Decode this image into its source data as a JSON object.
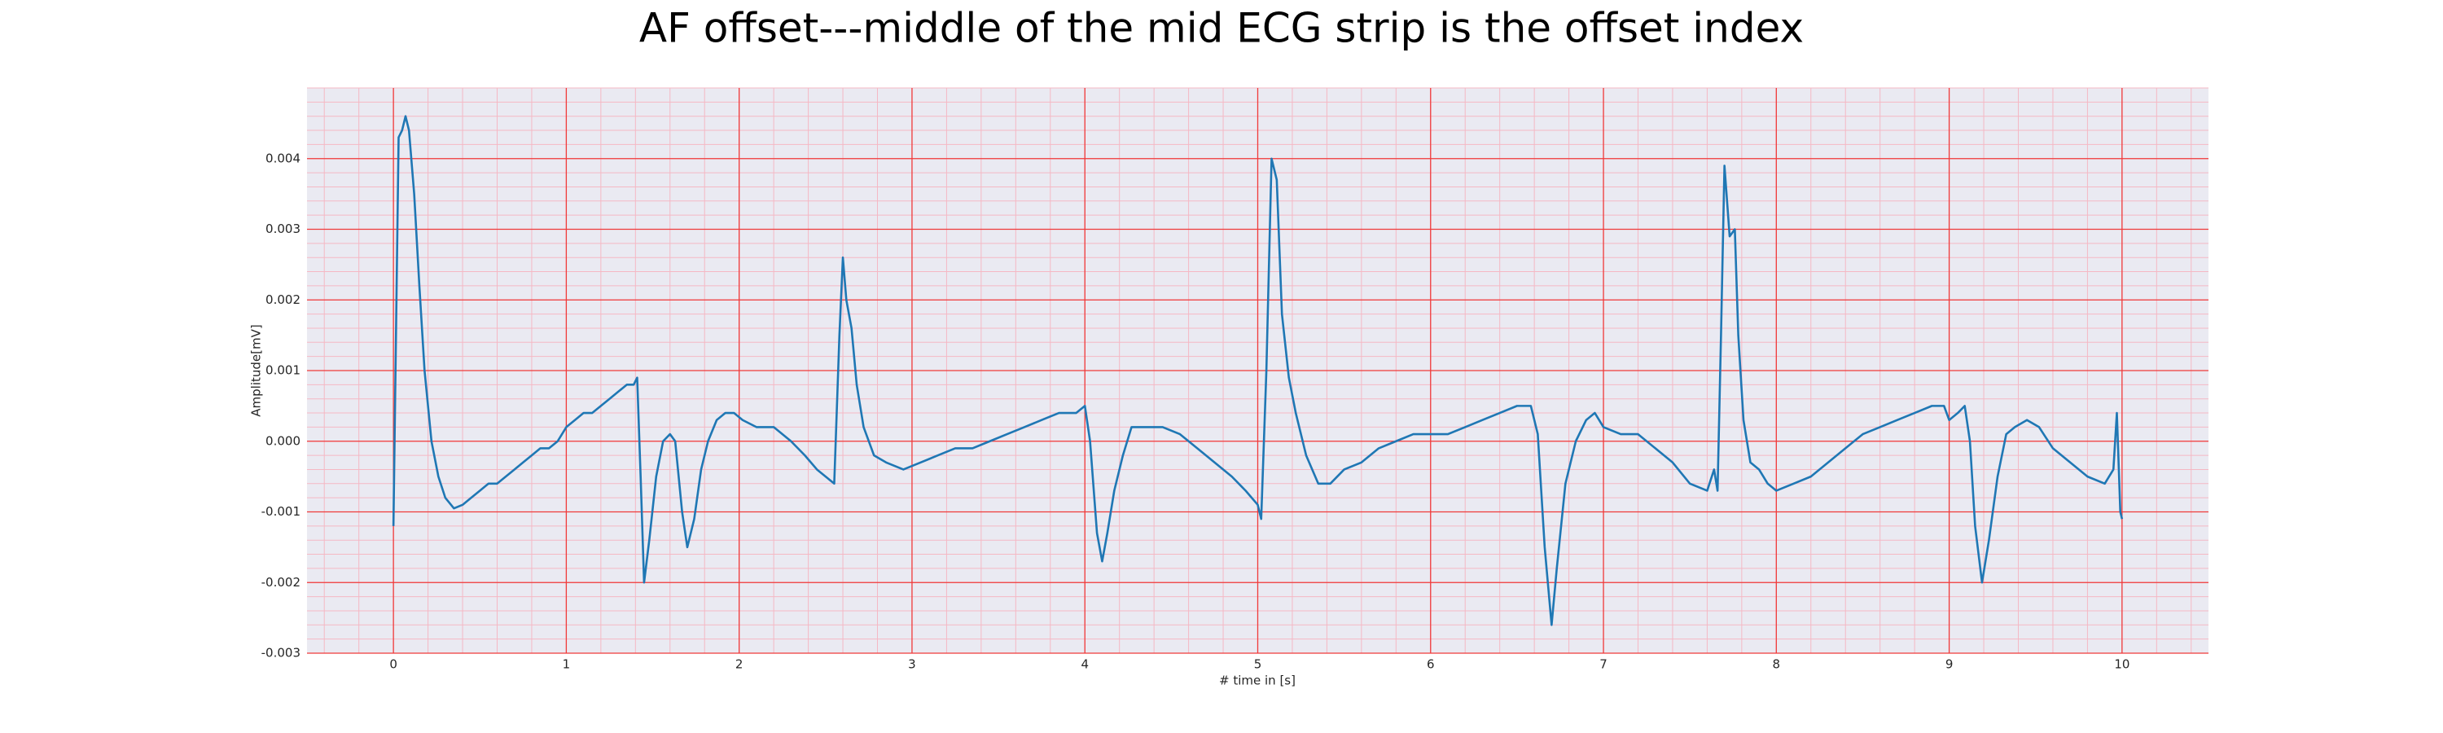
{
  "chart_data": {
    "type": "line",
    "title": "AF offset---middle of the mid ECG strip is the offset index",
    "xlabel": "# time in [s]",
    "ylabel": "Amplitude[mV]",
    "x": [
      0,
      0.03,
      0.05,
      0.07,
      0.09,
      0.12,
      0.15,
      0.18,
      0.22,
      0.26,
      0.3,
      0.35,
      0.4,
      0.45,
      0.5,
      0.55,
      0.6,
      0.65,
      0.7,
      0.75,
      0.8,
      0.85,
      0.9,
      0.95,
      1.0,
      1.05,
      1.1,
      1.15,
      1.2,
      1.25,
      1.3,
      1.35,
      1.39,
      1.41,
      1.43,
      1.45,
      1.48,
      1.52,
      1.56,
      1.6,
      1.63,
      1.67,
      1.7,
      1.74,
      1.78,
      1.82,
      1.87,
      1.92,
      1.97,
      2.02,
      2.1,
      2.2,
      2.3,
      2.38,
      2.45,
      2.5,
      2.55,
      2.58,
      2.6,
      2.62,
      2.65,
      2.68,
      2.72,
      2.78,
      2.85,
      2.95,
      3.05,
      3.15,
      3.25,
      3.35,
      3.45,
      3.55,
      3.65,
      3.75,
      3.85,
      3.95,
      4.0,
      4.03,
      4.07,
      4.1,
      4.13,
      4.17,
      4.22,
      4.27,
      4.35,
      4.45,
      4.55,
      4.65,
      4.75,
      4.85,
      4.93,
      5.0,
      5.02,
      5.05,
      5.08,
      5.11,
      5.14,
      5.18,
      5.22,
      5.28,
      5.35,
      5.42,
      5.5,
      5.6,
      5.7,
      5.8,
      5.9,
      6.0,
      6.1,
      6.2,
      6.3,
      6.4,
      6.5,
      6.58,
      6.62,
      6.66,
      6.7,
      6.73,
      6.78,
      6.84,
      6.9,
      6.95,
      7.0,
      7.1,
      7.2,
      7.3,
      7.4,
      7.5,
      7.6,
      7.64,
      7.66,
      7.68,
      7.7,
      7.73,
      7.76,
      7.78,
      7.81,
      7.85,
      7.9,
      7.95,
      8.0,
      8.1,
      8.2,
      8.3,
      8.4,
      8.5,
      8.6,
      8.7,
      8.8,
      8.9,
      8.97,
      9.0,
      9.05,
      9.09,
      9.12,
      9.15,
      9.19,
      9.23,
      9.28,
      9.33,
      9.38,
      9.45,
      9.52,
      9.6,
      9.7,
      9.8,
      9.9,
      9.95,
      9.97,
      9.99,
      10.0
    ],
    "series": [
      {
        "color": "#1f77b4",
        "values": [
          -0.0012,
          0.0043,
          0.0044,
          0.0046,
          0.0044,
          0.0035,
          0.0022,
          0.001,
          0.0,
          -0.0005,
          -0.0008,
          -0.00095,
          -0.0009,
          -0.0008,
          -0.0007,
          -0.0006,
          -0.0006,
          -0.0005,
          -0.0004,
          -0.0003,
          -0.0002,
          -0.0001,
          -0.0001,
          0.0,
          0.0002,
          0.0003,
          0.0004,
          0.0004,
          0.0005,
          0.0006,
          0.0007,
          0.0008,
          0.0008,
          0.0009,
          -0.0005,
          -0.002,
          -0.0014,
          -0.0005,
          0.0,
          0.0001,
          0.0,
          -0.001,
          -0.0015,
          -0.0011,
          -0.0004,
          0.0,
          0.0003,
          0.0004,
          0.0004,
          0.0003,
          0.0002,
          0.0002,
          0.0,
          -0.0002,
          -0.0004,
          -0.0005,
          -0.0006,
          0.0015,
          0.0026,
          0.002,
          0.0016,
          0.0008,
          0.0002,
          -0.0002,
          -0.0003,
          -0.0004,
          -0.0003,
          -0.0002,
          -0.0001,
          -0.0001,
          0.0,
          0.0001,
          0.0002,
          0.0003,
          0.0004,
          0.0004,
          0.0005,
          0.0,
          -0.0013,
          -0.0017,
          -0.0013,
          -0.0007,
          -0.0002,
          0.0002,
          0.0002,
          0.0002,
          0.0001,
          -0.0001,
          -0.0003,
          -0.0005,
          -0.0007,
          -0.0009,
          -0.0011,
          0.001,
          0.004,
          0.0037,
          0.0018,
          0.0009,
          0.0004,
          -0.0002,
          -0.0006,
          -0.0006,
          -0.0004,
          -0.0003,
          -0.0001,
          0.0,
          0.0001,
          0.0001,
          0.0001,
          0.0002,
          0.0003,
          0.0004,
          0.0005,
          0.0005,
          0.0001,
          -0.0015,
          -0.0026,
          -0.0018,
          -0.0006,
          0.0,
          0.0003,
          0.0004,
          0.0002,
          0.0001,
          0.0001,
          -0.0001,
          -0.0003,
          -0.0006,
          -0.0007,
          -0.0004,
          -0.0007,
          0.0015,
          0.0039,
          0.0029,
          0.003,
          0.0015,
          0.0003,
          -0.0003,
          -0.0004,
          -0.0006,
          -0.0007,
          -0.0006,
          -0.0005,
          -0.0003,
          -0.0001,
          0.0001,
          0.0002,
          0.0003,
          0.0004,
          0.0005,
          0.0005,
          0.0003,
          0.0004,
          0.0005,
          0.0,
          -0.0012,
          -0.002,
          -0.0014,
          -0.0005,
          0.0001,
          0.0002,
          0.0003,
          0.0002,
          -0.0001,
          -0.0003,
          -0.0005,
          -0.0006,
          -0.0004,
          0.0004,
          -0.001,
          -0.0011
        ]
      }
    ],
    "xlim": [
      -0.5,
      10.5
    ],
    "ylim": [
      -0.003,
      0.005
    ],
    "xticks": [
      0,
      1,
      2,
      3,
      4,
      5,
      6,
      7,
      8,
      9,
      10
    ],
    "yticks": [
      -0.003,
      -0.002,
      -0.001,
      {
        "value": 0,
        "label": "0.000"
      },
      0.001,
      0.002,
      0.003,
      0.004
    ],
    "grid": true,
    "minor_grid": true
  }
}
